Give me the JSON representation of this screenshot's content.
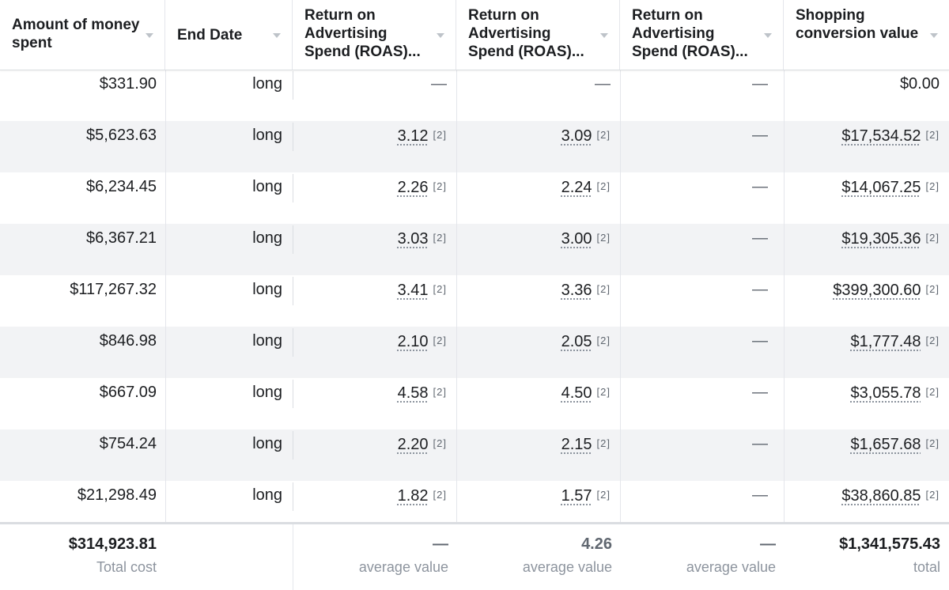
{
  "columns": [
    {
      "label": "Amount of money spent"
    },
    {
      "label": "End Date"
    },
    {
      "label": "Return on Advertising Spend (ROAS)..."
    },
    {
      "label": "Return on Advertising Spend (ROAS)..."
    },
    {
      "label": "Return on Advertising Spend (ROAS)..."
    },
    {
      "label": "Shopping conversion value"
    }
  ],
  "rows": [
    {
      "spent": "$331.90",
      "end": "long",
      "roas1": "—",
      "roas2": "—",
      "roas3": "—",
      "value": "$0.00"
    },
    {
      "spent": "$5,623.63",
      "end": "long",
      "roas1": "3.12",
      "roas2": "3.09",
      "roas3": "—",
      "value": "$17,534.52"
    },
    {
      "spent": "$6,234.45",
      "end": "long",
      "roas1": "2.26",
      "roas2": "2.24",
      "roas3": "—",
      "value": "$14,067.25"
    },
    {
      "spent": "$6,367.21",
      "end": "long",
      "roas1": "3.03",
      "roas2": "3.00",
      "roas3": "—",
      "value": "$19,305.36"
    },
    {
      "spent": "$117,267.32",
      "end": "long",
      "roas1": "3.41",
      "roas2": "3.36",
      "roas3": "—",
      "value": "$399,300.60"
    },
    {
      "spent": "$846.98",
      "end": "long",
      "roas1": "2.10",
      "roas2": "2.05",
      "roas3": "—",
      "value": "$1,777.48"
    },
    {
      "spent": "$667.09",
      "end": "long",
      "roas1": "4.58",
      "roas2": "4.50",
      "roas3": "—",
      "value": "$3,055.78"
    },
    {
      "spent": "$754.24",
      "end": "long",
      "roas1": "2.20",
      "roas2": "2.15",
      "roas3": "—",
      "value": "$1,657.68"
    },
    {
      "spent": "$21,298.49",
      "end": "long",
      "roas1": "1.82",
      "roas2": "1.57",
      "roas3": "—",
      "value": "$38,860.85"
    }
  ],
  "footnote_marker": "[2]",
  "totals": {
    "spent": {
      "value": "$314,923.81",
      "label": "Total cost"
    },
    "roas1": {
      "value": "—",
      "label": "average value"
    },
    "roas2": {
      "value": "4.26",
      "label": "average value"
    },
    "roas3": {
      "value": "—",
      "label": "average value"
    },
    "value": {
      "value": "$1,341,575.43",
      "label": "total"
    }
  }
}
